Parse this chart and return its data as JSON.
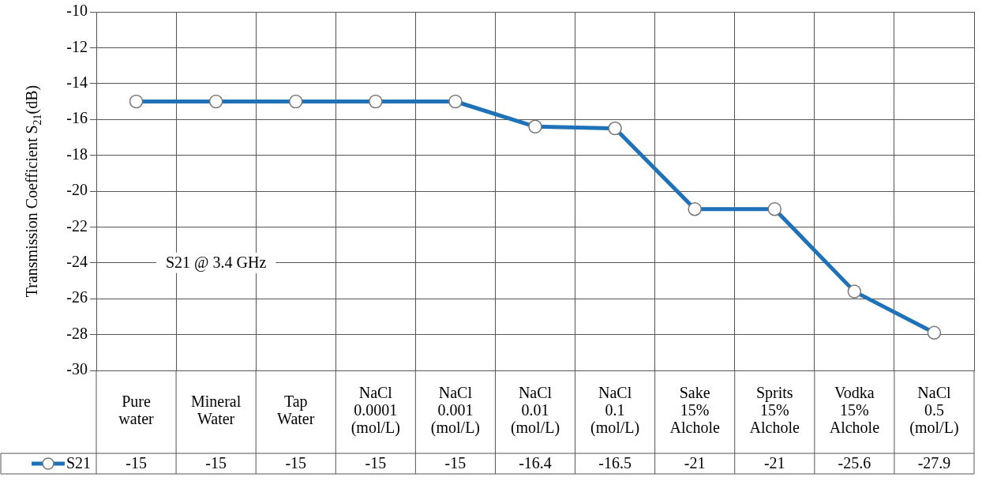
{
  "chart_data": {
    "type": "line",
    "ylabel": "Transmission Coefficient S$_{21}$(dB)",
    "categories": [
      "Pure\nwater",
      "Mineral\nWater",
      "Tap\nWater",
      "NaCl\n0.0001\n(mol/L)",
      "NaCl\n0.001\n(mol/L)",
      "NaCl\n0.01\n(mol/L)",
      "NaCl\n0.1\n(mol/L)",
      "Sake\n15%\nAlchole",
      "Sprits\n15%\nAlchole",
      "Vodka\n15%\nAlchole",
      "NaCl\n0.5\n(mol/L)"
    ],
    "series": [
      {
        "name": "S21",
        "color": "#1f72b8",
        "values": [
          -15,
          -15,
          -15,
          -15,
          -15,
          -16.4,
          -16.5,
          -21,
          -21,
          -25.6,
          -27.9
        ]
      }
    ],
    "ylim": [
      -30,
      -10
    ],
    "yticks": [
      -30,
      -28,
      -26,
      -24,
      -22,
      -20,
      -18,
      -16,
      -14,
      -12,
      -10
    ],
    "grid": true,
    "marker": "circle",
    "line_style": "solid",
    "legend": "bottom left",
    "data_labels": true,
    "annotations": [
      "S21 @ 3.4 GHz"
    ]
  }
}
